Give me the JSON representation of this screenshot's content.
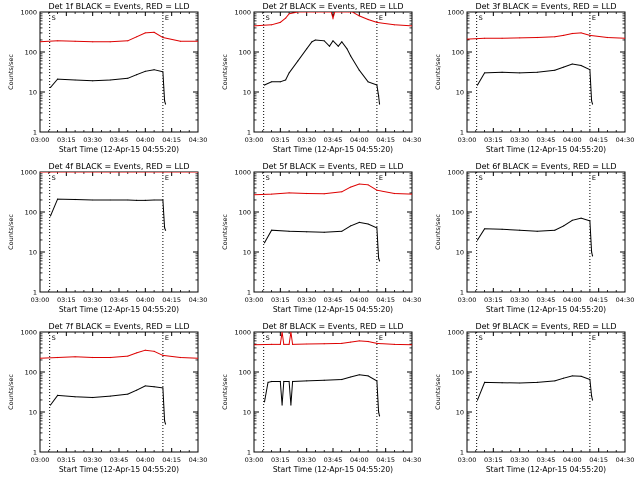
{
  "figure": {
    "x_tick_labels": [
      "03:00",
      "03:15",
      "03:30",
      "03:45",
      "04:00",
      "04:15",
      "04:30"
    ],
    "y_tick_labels": [
      "1",
      "10",
      "100",
      "1000"
    ],
    "xlabel": "Start Time (12-Apr-15 04:55:20)",
    "ylabel": "Counts/sec",
    "markers": [
      "S",
      "E"
    ],
    "colors": {
      "events": "#000000",
      "lld": "#dd0000",
      "axes": "#000000",
      "background": "#ffffff"
    }
  },
  "chart_data": [
    {
      "type": "line",
      "title": "Det 1f BLACK = Events, RED = LLD",
      "x_unit": "minutes after 03:00",
      "xlim": [
        0,
        90
      ],
      "ylim": [
        1,
        1000
      ],
      "yscale": "log",
      "vlines": [
        {
          "label": "S",
          "x": 5.5
        },
        {
          "label": "E",
          "x": 70
        }
      ],
      "series": [
        {
          "name": "Events",
          "color": "#000000",
          "x": [
            6,
            10,
            20,
            30,
            40,
            50,
            55,
            60,
            65,
            70,
            71,
            71.5
          ],
          "y": [
            13,
            21,
            20,
            19,
            20,
            22,
            27,
            33,
            36,
            32,
            6,
            5
          ]
        },
        {
          "name": "LLD",
          "color": "#dd0000",
          "x": [
            0,
            10,
            20,
            30,
            40,
            50,
            55,
            60,
            65,
            70,
            80,
            90
          ],
          "y": [
            180,
            190,
            185,
            180,
            180,
            190,
            240,
            300,
            310,
            230,
            185,
            185
          ]
        }
      ]
    },
    {
      "type": "line",
      "title": "Det 2f BLACK = Events, RED = LLD",
      "x_unit": "minutes after 03:00",
      "xlim": [
        0,
        90
      ],
      "ylim": [
        1,
        1000
      ],
      "yscale": "log",
      "vlines": [
        {
          "label": "S",
          "x": 5.5
        },
        {
          "label": "E",
          "x": 70
        }
      ],
      "series": [
        {
          "name": "Events",
          "color": "#000000",
          "x": [
            6,
            10,
            15,
            18,
            20,
            25,
            30,
            33,
            35,
            40,
            43,
            45,
            48,
            50,
            53,
            55,
            60,
            65,
            70,
            71,
            71.5
          ],
          "y": [
            15,
            18,
            18,
            20,
            30,
            60,
            120,
            180,
            200,
            190,
            140,
            190,
            140,
            180,
            120,
            80,
            35,
            18,
            15,
            8,
            5
          ]
        },
        {
          "name": "LLD",
          "color": "#dd0000",
          "x": [
            0,
            10,
            15,
            18,
            20,
            25,
            30,
            34,
            36,
            40,
            44,
            45,
            46,
            50,
            54,
            56,
            60,
            65,
            70,
            80,
            90
          ],
          "y": [
            450,
            480,
            550,
            700,
            900,
            1000,
            1000,
            1000,
            1000,
            1000,
            1000,
            700,
            1000,
            1000,
            1000,
            1000,
            800,
            650,
            550,
            480,
            450
          ]
        }
      ]
    },
    {
      "type": "line",
      "title": "Det 3f BLACK = Events, RED = LLD",
      "x_unit": "minutes after 03:00",
      "xlim": [
        0,
        90
      ],
      "ylim": [
        1,
        1000
      ],
      "yscale": "log",
      "vlines": [
        {
          "label": "S",
          "x": 5.5
        },
        {
          "label": "E",
          "x": 70
        }
      ],
      "series": [
        {
          "name": "Events",
          "color": "#000000",
          "x": [
            6,
            10,
            20,
            30,
            40,
            50,
            55,
            60,
            65,
            70,
            71,
            71.5
          ],
          "y": [
            15,
            30,
            31,
            30,
            31,
            35,
            42,
            50,
            46,
            36,
            6,
            5
          ]
        },
        {
          "name": "LLD",
          "color": "#dd0000",
          "x": [
            0,
            10,
            20,
            30,
            40,
            50,
            55,
            60,
            65,
            70,
            80,
            90
          ],
          "y": [
            210,
            220,
            220,
            225,
            230,
            240,
            260,
            290,
            300,
            260,
            230,
            220
          ]
        }
      ]
    },
    {
      "type": "line",
      "title": "Det 4f BLACK = Events, RED = LLD",
      "x_unit": "minutes after 03:00",
      "xlim": [
        0,
        90
      ],
      "ylim": [
        1,
        1000
      ],
      "yscale": "log",
      "vlines": [
        {
          "label": "S",
          "x": 5.5
        },
        {
          "label": "E",
          "x": 70
        }
      ],
      "series": [
        {
          "name": "Events",
          "color": "#000000",
          "x": [
            6,
            10,
            20,
            30,
            40,
            50,
            55,
            60,
            65,
            70,
            71,
            71.5
          ],
          "y": [
            80,
            210,
            205,
            200,
            200,
            200,
            195,
            195,
            200,
            200,
            40,
            35
          ]
        },
        {
          "name": "LLD",
          "color": "#dd0000",
          "x": [
            0,
            10,
            20,
            30,
            40,
            50,
            60,
            70,
            80,
            90
          ],
          "y": [
            1000,
            1000,
            1000,
            1000,
            1000,
            1000,
            1000,
            1000,
            1000,
            1000
          ]
        }
      ]
    },
    {
      "type": "line",
      "title": "Det 5f BLACK = Events, RED = LLD",
      "x_unit": "minutes after 03:00",
      "xlim": [
        0,
        90
      ],
      "ylim": [
        1,
        1000
      ],
      "yscale": "log",
      "vlines": [
        {
          "label": "S",
          "x": 5.5
        },
        {
          "label": "E",
          "x": 70
        }
      ],
      "series": [
        {
          "name": "Events",
          "color": "#000000",
          "x": [
            6,
            10,
            20,
            30,
            40,
            50,
            55,
            60,
            65,
            70,
            71,
            71.5
          ],
          "y": [
            17,
            35,
            33,
            32,
            31,
            33,
            45,
            55,
            50,
            40,
            7,
            6
          ]
        },
        {
          "name": "LLD",
          "color": "#dd0000",
          "x": [
            0,
            10,
            20,
            30,
            40,
            50,
            55,
            60,
            65,
            70,
            80,
            90
          ],
          "y": [
            270,
            280,
            300,
            290,
            285,
            320,
            420,
            500,
            480,
            350,
            290,
            280
          ]
        }
      ]
    },
    {
      "type": "line",
      "title": "Det 6f BLACK = Events, RED = LLD",
      "x_unit": "minutes after 03:00",
      "xlim": [
        0,
        90
      ],
      "ylim": [
        1,
        1000
      ],
      "yscale": "log",
      "vlines": [
        {
          "label": "S",
          "x": 5.5
        },
        {
          "label": "E",
          "x": 70
        }
      ],
      "series": [
        {
          "name": "Events",
          "color": "#000000",
          "x": [
            6,
            10,
            20,
            30,
            40,
            50,
            55,
            60,
            65,
            70,
            71,
            71.5
          ],
          "y": [
            20,
            38,
            37,
            35,
            33,
            35,
            45,
            62,
            70,
            60,
            10,
            8
          ]
        }
      ]
    },
    {
      "type": "line",
      "title": "Det 7f BLACK = Events, RED = LLD",
      "x_unit": "minutes after 03:00",
      "xlim": [
        0,
        90
      ],
      "ylim": [
        1,
        1000
      ],
      "yscale": "log",
      "vlines": [
        {
          "label": "S",
          "x": 5.5
        },
        {
          "label": "E",
          "x": 70
        }
      ],
      "series": [
        {
          "name": "Events",
          "color": "#000000",
          "x": [
            6,
            10,
            20,
            30,
            40,
            50,
            55,
            60,
            65,
            70,
            71,
            71.5
          ],
          "y": [
            15,
            26,
            24,
            23,
            25,
            28,
            35,
            45,
            43,
            40,
            6,
            5
          ]
        },
        {
          "name": "LLD",
          "color": "#dd0000",
          "x": [
            0,
            10,
            20,
            30,
            40,
            50,
            55,
            60,
            65,
            70,
            80,
            90
          ],
          "y": [
            220,
            230,
            240,
            230,
            230,
            250,
            300,
            350,
            330,
            260,
            230,
            220
          ]
        }
      ]
    },
    {
      "type": "line",
      "title": "Det 8f BLACK = Events, RED = LLD",
      "x_unit": "minutes after 03:00",
      "xlim": [
        0,
        90
      ],
      "ylim": [
        1,
        1000
      ],
      "yscale": "log",
      "vlines": [
        {
          "label": "S",
          "x": 5.5
        },
        {
          "label": "E",
          "x": 70
        }
      ],
      "series": [
        {
          "name": "Events",
          "color": "#000000",
          "x": [
            6,
            8,
            10,
            15,
            16,
            17,
            20,
            21,
            22,
            30,
            40,
            50,
            55,
            60,
            65,
            70,
            71,
            71.5
          ],
          "y": [
            18,
            55,
            58,
            58,
            15,
            58,
            58,
            15,
            58,
            60,
            62,
            65,
            75,
            85,
            80,
            60,
            10,
            8
          ]
        },
        {
          "name": "LLD",
          "color": "#dd0000",
          "x": [
            0,
            10,
            15,
            16,
            17,
            20,
            21,
            22,
            30,
            40,
            50,
            55,
            60,
            65,
            70,
            80,
            90
          ],
          "y": [
            480,
            490,
            490,
            1000,
            490,
            490,
            1000,
            490,
            500,
            510,
            520,
            560,
            600,
            580,
            520,
            490,
            480
          ]
        }
      ]
    },
    {
      "type": "line",
      "title": "Det 9f BLACK = Events, RED = LLD",
      "x_unit": "minutes after 03:00",
      "xlim": [
        0,
        90
      ],
      "ylim": [
        1,
        1000
      ],
      "yscale": "log",
      "vlines": [
        {
          "label": "S",
          "x": 5.5
        },
        {
          "label": "E",
          "x": 70
        }
      ],
      "series": [
        {
          "name": "Events",
          "color": "#000000",
          "x": [
            6,
            10,
            20,
            30,
            40,
            50,
            55,
            60,
            65,
            70,
            71,
            71.5
          ],
          "y": [
            20,
            55,
            54,
            53,
            55,
            60,
            70,
            80,
            78,
            65,
            25,
            20
          ]
        }
      ]
    }
  ]
}
